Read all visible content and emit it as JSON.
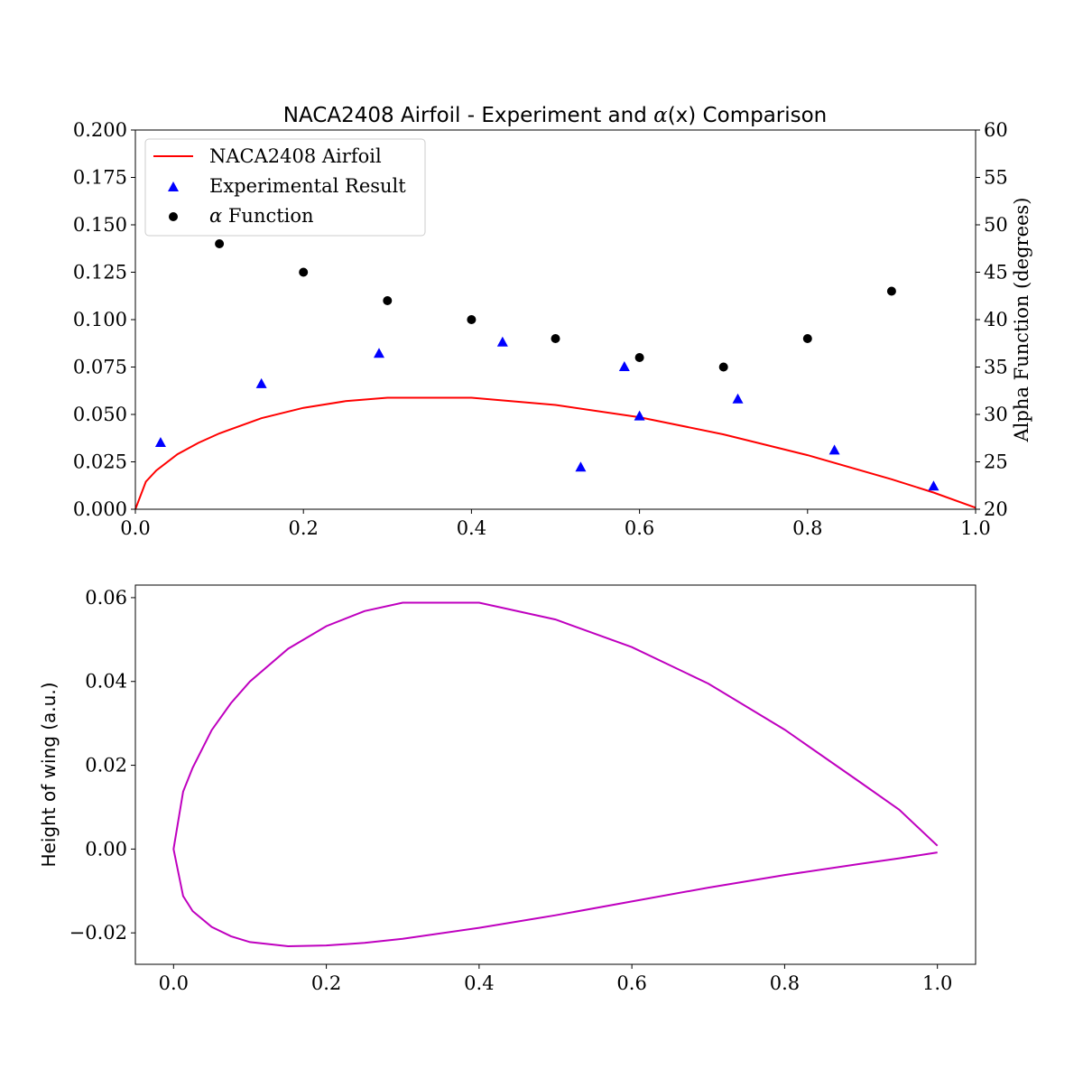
{
  "chart_data": [
    {
      "type": "line",
      "title_parts": [
        "NACA2408 Airfoil - Experiment and ",
        "α",
        "(x) Comparison"
      ],
      "xlabel": "",
      "ylabel": "",
      "y2label": "Alpha Function (degrees)",
      "xlim": [
        0.0,
        1.0
      ],
      "ylim": [
        0.0,
        0.2
      ],
      "y2lim": [
        20,
        60
      ],
      "x_ticks": [
        "0.0",
        "0.2",
        "0.4",
        "0.6",
        "0.8",
        "1.0"
      ],
      "y_ticks": [
        "0.000",
        "0.025",
        "0.050",
        "0.075",
        "0.100",
        "0.125",
        "0.150",
        "0.175",
        "0.200"
      ],
      "y2_ticks": [
        "20",
        "25",
        "30",
        "35",
        "40",
        "45",
        "50",
        "55",
        "60"
      ],
      "grid": false,
      "legend_position": "top-left",
      "series": [
        {
          "name": "NACA2408 Airfoil",
          "kind": "line",
          "color": "#ff0000",
          "axis": "left",
          "x": [
            0.0,
            0.0125,
            0.025,
            0.05,
            0.075,
            0.1,
            0.15,
            0.2,
            0.25,
            0.3,
            0.4,
            0.5,
            0.6,
            0.7,
            0.8,
            0.9,
            0.95,
            1.0
          ],
          "y": [
            0.0,
            0.0145,
            0.0205,
            0.029,
            0.035,
            0.04,
            0.048,
            0.0535,
            0.057,
            0.0588,
            0.0588,
            0.055,
            0.0485,
            0.0395,
            0.0285,
            0.0158,
            0.0088,
            0.0008
          ]
        },
        {
          "name": "Experimental Result",
          "kind": "scatter",
          "marker": "triangle",
          "color": "#0000ff",
          "axis": "left",
          "x": [
            0.03,
            0.15,
            0.29,
            0.437,
            0.53,
            0.582,
            0.6,
            0.717,
            0.832,
            0.95
          ],
          "y": [
            0.035,
            0.066,
            0.082,
            0.088,
            0.022,
            0.075,
            0.049,
            0.058,
            0.031,
            0.012
          ]
        },
        {
          "name_parts": [
            "α",
            " Function"
          ],
          "kind": "scatter",
          "marker": "circle",
          "color": "#000000",
          "axis": "right",
          "x": [
            0.1,
            0.2,
            0.3,
            0.4,
            0.5,
            0.6,
            0.7,
            0.8,
            0.9
          ],
          "y": [
            48,
            45,
            42,
            40,
            38,
            36,
            35,
            38,
            43
          ]
        }
      ]
    },
    {
      "type": "line",
      "title": "",
      "xlabel": "",
      "ylabel": "Height of wing (a.u.)",
      "xlim": [
        -0.05,
        1.05
      ],
      "ylim": [
        -0.0275,
        0.063
      ],
      "x_ticks": [
        "0.0",
        "0.2",
        "0.4",
        "0.6",
        "0.8",
        "1.0"
      ],
      "y_ticks": [
        "−0.02",
        "0.00",
        "0.02",
        "0.04",
        "0.06"
      ],
      "grid": false,
      "series": [
        {
          "kind": "line",
          "color": "#bf00bf",
          "x": [
            1.0,
            0.95,
            0.9,
            0.8,
            0.7,
            0.6,
            0.5,
            0.4,
            0.3,
            0.25,
            0.2,
            0.15,
            0.1,
            0.075,
            0.05,
            0.025,
            0.0125,
            0.0,
            0.0125,
            0.025,
            0.05,
            0.075,
            0.1,
            0.15,
            0.2,
            0.25,
            0.3,
            0.4,
            0.5,
            0.6,
            0.7,
            0.8,
            0.9,
            0.95,
            1.0
          ],
          "y": [
            0.0008,
            0.0094,
            0.0158,
            0.0285,
            0.0395,
            0.0482,
            0.0548,
            0.0588,
            0.0588,
            0.0568,
            0.0532,
            0.0478,
            0.04,
            0.0348,
            0.0284,
            0.0194,
            0.0137,
            0.0,
            -0.0112,
            -0.0148,
            -0.0186,
            -0.0208,
            -0.0222,
            -0.0232,
            -0.023,
            -0.0224,
            -0.0214,
            -0.0188,
            -0.0158,
            -0.0125,
            -0.0092,
            -0.0062,
            -0.0035,
            -0.0022,
            -0.0008
          ]
        }
      ]
    }
  ]
}
